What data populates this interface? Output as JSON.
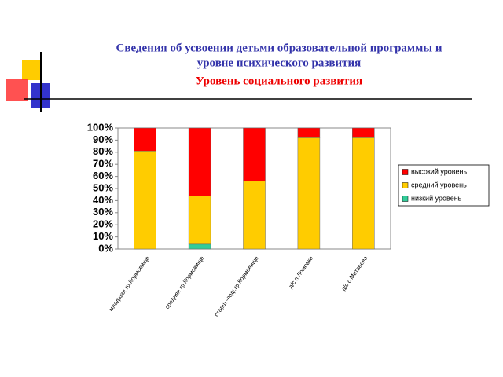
{
  "chart_data": {
    "type": "bar",
    "stacked": true,
    "title": [
      "Сведения об усвоении детьми образовательной программы и",
      "уровне психического развития"
    ],
    "subtitle": "Уровень социального развития",
    "categories": [
      "младшая гр.Кормовище",
      "средняя гр.Кормовище",
      "старш.-подг.гр.Кормовище",
      "д/с п.Ломовка",
      "д/с с.Матвеева"
    ],
    "series": [
      {
        "name": "низкий уровень",
        "color": "#33cc99",
        "values": [
          0,
          4,
          0,
          0,
          0
        ]
      },
      {
        "name": "средний уровень",
        "color": "#ffcc00",
        "values": [
          81,
          40,
          56,
          92,
          92
        ]
      },
      {
        "name": "высокий уровень",
        "color": "#ff0000",
        "values": [
          19,
          56,
          44,
          8,
          8
        ]
      }
    ],
    "ylim": [
      0,
      100
    ],
    "yticks": [
      {
        "value": 0,
        "label": "0%"
      },
      {
        "value": 10,
        "label": "10%"
      },
      {
        "value": 20,
        "label": "20%"
      },
      {
        "value": 30,
        "label": "30%"
      },
      {
        "value": 40,
        "label": "40%"
      },
      {
        "value": 50,
        "label": "50%"
      },
      {
        "value": 60,
        "label": "60%"
      },
      {
        "value": 70,
        "label": "70%"
      },
      {
        "value": 80,
        "label": "80%"
      },
      {
        "value": 90,
        "label": "90%"
      },
      {
        "value": 100,
        "label": "100%"
      }
    ],
    "legend": "right"
  }
}
